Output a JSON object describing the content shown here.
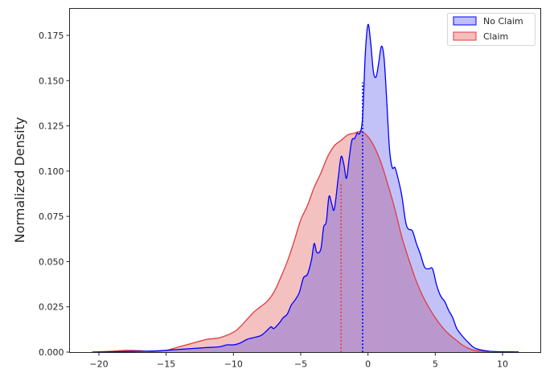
{
  "chart_data": {
    "type": "area",
    "title": "",
    "xlabel": "",
    "ylabel": "Normalized Density",
    "xlim": [
      -22.2,
      12.8
    ],
    "ylim": [
      0.0,
      0.1875
    ],
    "xticks": [
      -20,
      -15,
      -10,
      -5,
      0,
      5,
      10
    ],
    "xtick_labels": [
      "−20",
      "−15",
      "−10",
      "−5",
      "0",
      "5",
      "10"
    ],
    "yticks": [
      0.0,
      0.025,
      0.05,
      0.075,
      0.1,
      0.125,
      0.15,
      0.175
    ],
    "ytick_labels": [
      "0.000",
      "0.025",
      "0.050",
      "0.075",
      "0.100",
      "0.125",
      "0.150",
      "0.175"
    ],
    "grid": false,
    "legend_position": "upper right",
    "series": [
      {
        "name": "No Claim",
        "color": "#0000ff",
        "fill": "#b3b3f5",
        "fill_alpha": 0.25,
        "median_line": {
          "x": -0.4,
          "y_top": 0.149,
          "style": "dotted"
        },
        "x": [
          -20.5,
          -18,
          -16,
          -15,
          -14,
          -13,
          -12,
          -11,
          -10.5,
          -10,
          -9.5,
          -9,
          -8.5,
          -8,
          -7.8,
          -7.5,
          -7.2,
          -7,
          -6.6,
          -6.3,
          -6,
          -5.7,
          -5.4,
          -5.1,
          -4.8,
          -4.5,
          -4.2,
          -4.0,
          -3.8,
          -3.5,
          -3.3,
          -3.1,
          -2.9,
          -2.7,
          -2.5,
          -2.2,
          -2.0,
          -1.8,
          -1.6,
          -1.4,
          -1.2,
          -1.0,
          -0.8,
          -0.6,
          -0.4,
          -0.2,
          0.0,
          0.2,
          0.4,
          0.6,
          0.8,
          1.0,
          1.2,
          1.4,
          1.6,
          1.8,
          2.0,
          2.2,
          2.5,
          2.8,
          3.0,
          3.3,
          3.6,
          3.9,
          4.2,
          4.5,
          4.8,
          5.1,
          5.4,
          5.7,
          6.0,
          6.3,
          6.6,
          7.0,
          7.5,
          8.0,
          9.0,
          10.0,
          11.2
        ],
        "y": [
          0.0,
          0.0003,
          0.0006,
          0.001,
          0.0015,
          0.002,
          0.0025,
          0.003,
          0.004,
          0.004,
          0.005,
          0.007,
          0.008,
          0.009,
          0.01,
          0.012,
          0.014,
          0.013,
          0.016,
          0.019,
          0.021,
          0.026,
          0.029,
          0.033,
          0.041,
          0.043,
          0.051,
          0.06,
          0.055,
          0.057,
          0.069,
          0.072,
          0.086,
          0.082,
          0.079,
          0.097,
          0.108,
          0.104,
          0.096,
          0.107,
          0.117,
          0.118,
          0.121,
          0.121,
          0.13,
          0.165,
          0.181,
          0.171,
          0.155,
          0.152,
          0.16,
          0.169,
          0.162,
          0.138,
          0.112,
          0.102,
          0.102,
          0.097,
          0.087,
          0.072,
          0.068,
          0.067,
          0.06,
          0.054,
          0.047,
          0.046,
          0.046,
          0.037,
          0.031,
          0.028,
          0.023,
          0.019,
          0.013,
          0.009,
          0.005,
          0.002,
          0.0005,
          0.0002,
          0.0001
        ]
      },
      {
        "name": "Claim",
        "color": "#e33b3b",
        "fill": "#f2a3a3",
        "fill_alpha": 0.5,
        "median_line": {
          "x": -2.0,
          "y_top": 0.094,
          "style": "dotted"
        },
        "x": [
          -20.5,
          -19,
          -18,
          -17,
          -16,
          -15,
          -14,
          -13,
          -12,
          -11,
          -10,
          -9.5,
          -9,
          -8.5,
          -8,
          -7.5,
          -7,
          -6.5,
          -6,
          -5.5,
          -5,
          -4.5,
          -4,
          -3.5,
          -3,
          -2.5,
          -2,
          -1.5,
          -1,
          -0.5,
          0,
          0.5,
          1,
          1.5,
          2,
          2.5,
          3,
          3.5,
          4,
          4.5,
          5,
          5.5,
          6,
          6.5,
          7,
          7.5,
          8,
          9
        ],
        "y": [
          0.0,
          0.0005,
          0.001,
          0.0008,
          0.0003,
          0.001,
          0.003,
          0.005,
          0.007,
          0.008,
          0.011,
          0.014,
          0.018,
          0.022,
          0.025,
          0.028,
          0.033,
          0.041,
          0.05,
          0.061,
          0.073,
          0.081,
          0.091,
          0.099,
          0.108,
          0.114,
          0.117,
          0.12,
          0.121,
          0.122,
          0.119,
          0.113,
          0.104,
          0.092,
          0.079,
          0.064,
          0.052,
          0.041,
          0.032,
          0.025,
          0.019,
          0.014,
          0.01,
          0.007,
          0.004,
          0.002,
          0.0008,
          0.0001
        ]
      }
    ]
  },
  "legend": {
    "items": [
      {
        "label": "No Claim",
        "edge": "#0000ff",
        "face": "#bfbff5"
      },
      {
        "label": "Claim",
        "edge": "#e33b3b",
        "face": "#f5bdbd"
      }
    ]
  },
  "axes": {
    "ylabel": "Normalized Density"
  }
}
